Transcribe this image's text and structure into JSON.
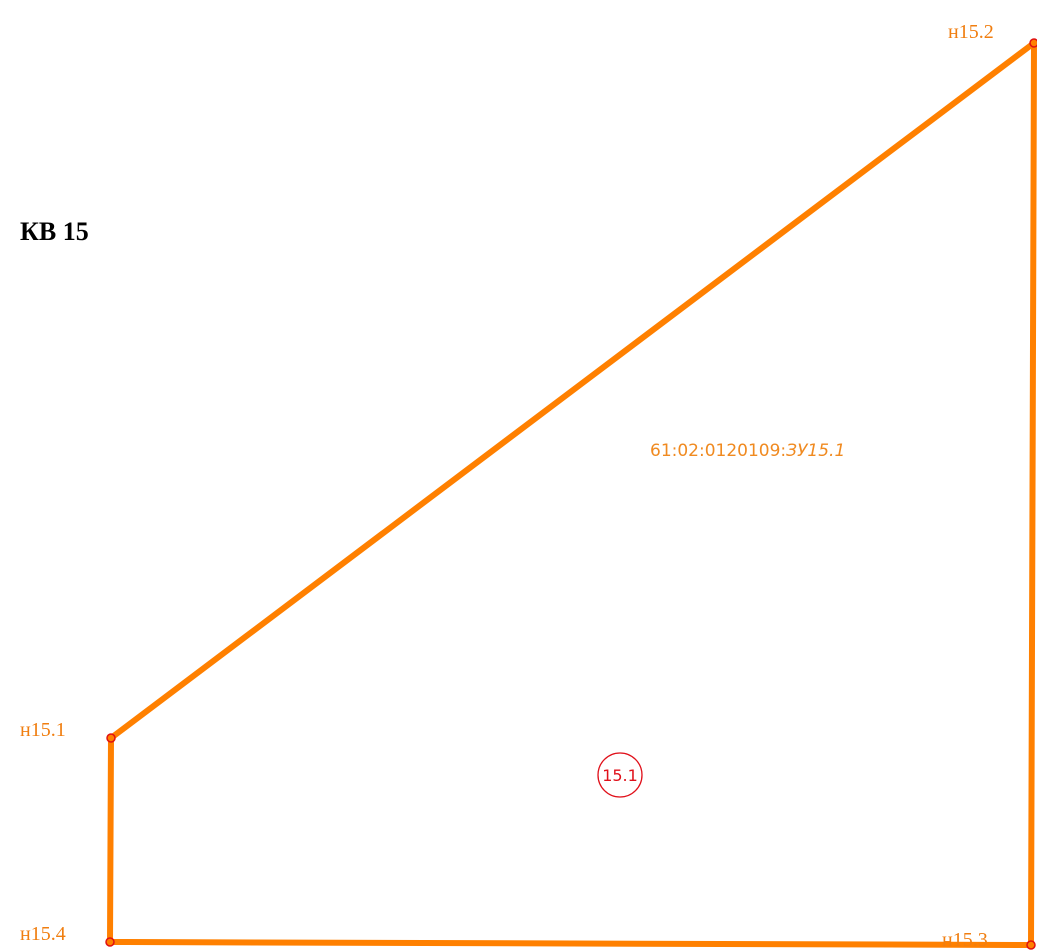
{
  "block": {
    "label": "КВ 15"
  },
  "parcel": {
    "number_prefix": "61:02:0120109:",
    "number_suffix": "ЗУ15.1",
    "circle_label": "15.1"
  },
  "points": [
    {
      "label": "н15.1"
    },
    {
      "label": "н15.2"
    },
    {
      "label": "н15.3"
    },
    {
      "label": "н15.4"
    }
  ]
}
